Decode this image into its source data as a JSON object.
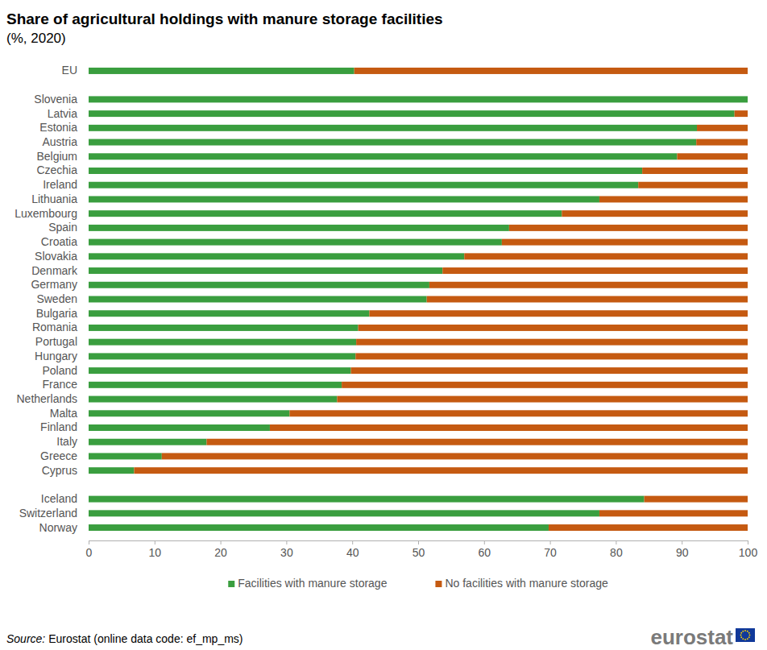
{
  "chart_data": {
    "type": "bar",
    "orientation": "horizontal",
    "stacked": true,
    "title": "Share of agricultural holdings with manure storage facilities",
    "subtitle": "(%, 2020)",
    "source_label": "Source:",
    "source": "Eurostat (online data code: ef_mp_ms)",
    "logo": "eurostat",
    "categories": [
      "EU",
      null,
      "Slovenia",
      "Latvia",
      "Estonia",
      "Austria",
      "Belgium",
      "Czechia",
      "Ireland",
      "Lithuania",
      "Luxembourg",
      "Spain",
      "Croatia",
      "Slovakia",
      "Denmark",
      "Germany",
      "Sweden",
      "Bulgaria",
      "Romania",
      "Portugal",
      "Hungary",
      "Poland",
      "France",
      "Netherlands",
      "Malta",
      "Finland",
      "Italy",
      "Greece",
      "Cyprus",
      null,
      "Iceland",
      "Switzerland",
      "Norway"
    ],
    "series": [
      {
        "name": "Facilities with manure storage",
        "color": "#3a9e3f",
        "values": [
          40.3,
          null,
          100,
          98,
          92.3,
          92.2,
          89.3,
          84,
          83.4,
          77.5,
          71.8,
          63.8,
          62.7,
          57,
          53.7,
          51.7,
          51.3,
          42.6,
          40.9,
          40.6,
          40.5,
          39.8,
          38.4,
          37.7,
          30.5,
          27.5,
          17.9,
          11.1,
          6.9,
          null,
          84.3,
          77.5,
          69.8
        ]
      },
      {
        "name": "No facilities with manure storage",
        "color": "#c55a11",
        "values": [
          59.7,
          null,
          0,
          2,
          7.7,
          7.8,
          10.7,
          16,
          16.6,
          22.5,
          28.2,
          36.2,
          37.3,
          43,
          46.3,
          48.3,
          48.7,
          57.4,
          59.1,
          59.4,
          59.5,
          60.2,
          61.6,
          62.3,
          69.5,
          72.5,
          82.1,
          88.9,
          93.1,
          null,
          15.7,
          22.5,
          30.2
        ]
      }
    ],
    "xlim": [
      0,
      100
    ],
    "xticks": [
      0,
      10,
      20,
      30,
      40,
      50,
      60,
      70,
      80,
      90,
      100
    ],
    "grid": false,
    "legend": "bottom"
  }
}
